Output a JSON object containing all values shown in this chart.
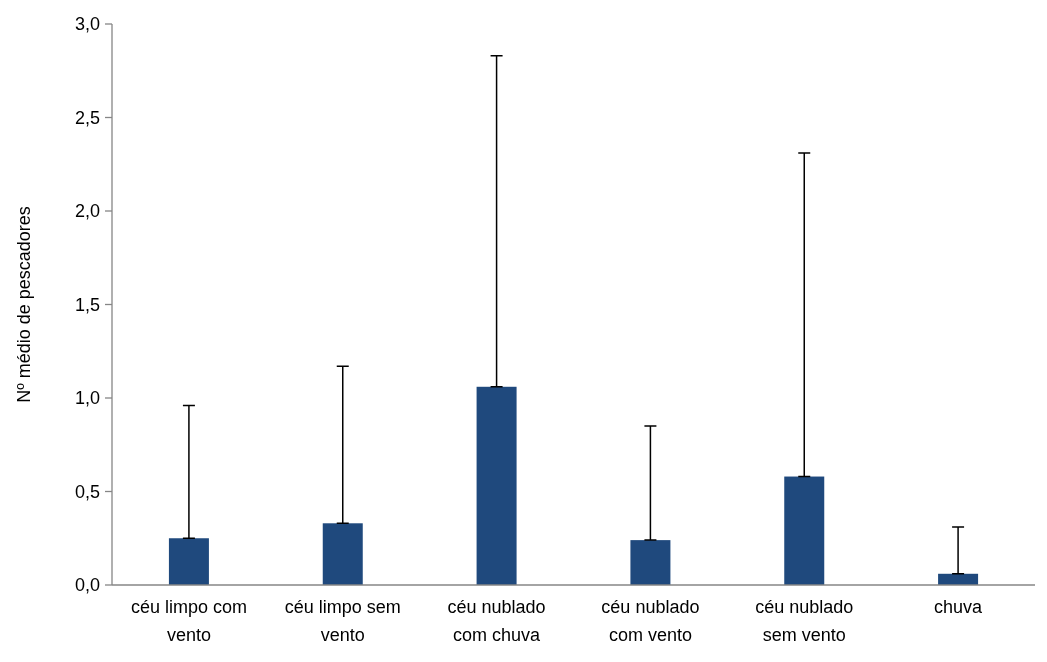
{
  "chart_data": {
    "type": "bar",
    "ylabel": "Nº médio de pescadores",
    "categories": [
      "céu limpo com vento",
      "céu limpo sem vento",
      "céu nublado com chuva",
      "céu nublado com vento",
      "céu nublado sem vento",
      "chuva"
    ],
    "values": [
      0.25,
      0.33,
      1.06,
      0.24,
      0.58,
      0.06
    ],
    "errors": [
      [
        0.25,
        0.96
      ],
      [
        0.33,
        1.17
      ],
      [
        1.06,
        2.83
      ],
      [
        0.24,
        0.85
      ],
      [
        0.58,
        2.31
      ],
      [
        0.06,
        0.31
      ]
    ],
    "color": "#1f497d",
    "ylim": [
      0,
      3
    ],
    "yticks": [
      {
        "value": 0,
        "label": "0,0"
      },
      {
        "value": 0.5,
        "label": "0,5"
      },
      {
        "value": 1,
        "label": "1,0"
      },
      {
        "value": 1.5,
        "label": "1,5"
      },
      {
        "value": 2,
        "label": "2,0"
      },
      {
        "value": 2.5,
        "label": "2,5"
      },
      {
        "value": 3,
        "label": "3,0"
      }
    ],
    "grid": false
  }
}
